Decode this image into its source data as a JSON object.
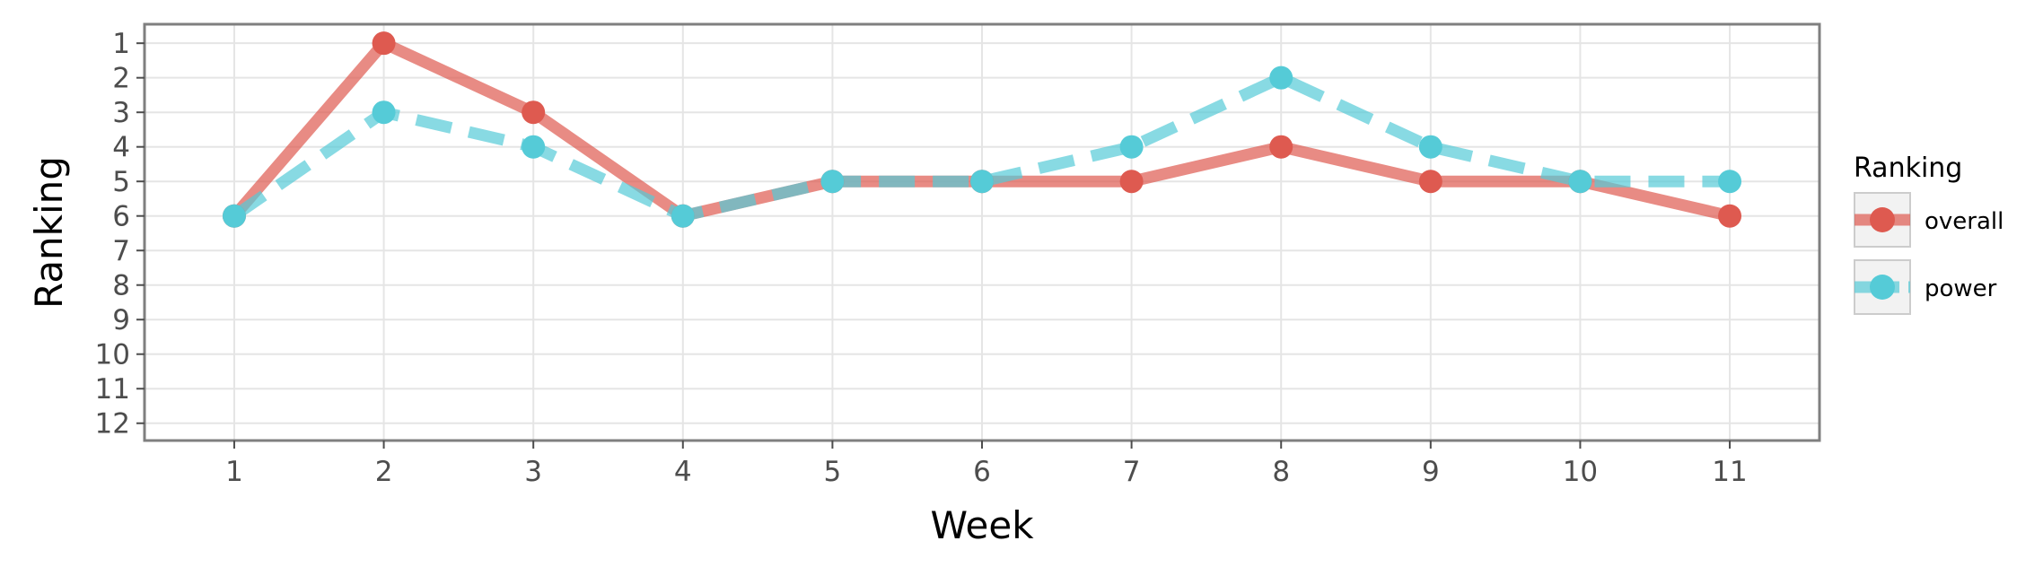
{
  "chart_data": {
    "type": "line",
    "xlabel": "Week",
    "ylabel": "Ranking",
    "x": [
      1,
      2,
      3,
      4,
      5,
      6,
      7,
      8,
      9,
      10,
      11
    ],
    "x_ticks": [
      "1",
      "2",
      "3",
      "4",
      "5",
      "6",
      "7",
      "8",
      "9",
      "10",
      "11"
    ],
    "y_ticks": [
      "1",
      "2",
      "3",
      "4",
      "5",
      "6",
      "7",
      "8",
      "9",
      "10",
      "11",
      "12"
    ],
    "xlim": [
      0.4,
      11.6
    ],
    "ylim": [
      12.5,
      0.45
    ],
    "y_reversed": true,
    "grid": true,
    "legend": {
      "title": "Ranking",
      "position": "right"
    },
    "series": [
      {
        "name": "overall",
        "values": [
          6,
          1,
          3,
          6,
          5,
          5,
          5,
          4,
          5,
          5,
          6
        ],
        "color": "#de5a50",
        "line_style": "solid"
      },
      {
        "name": "power",
        "values": [
          6,
          3,
          4,
          6,
          5,
          5,
          4,
          2,
          4,
          5,
          5
        ],
        "color": "#55cbd7",
        "line_style": "dashed"
      }
    ]
  }
}
